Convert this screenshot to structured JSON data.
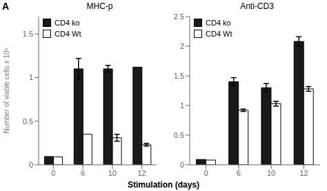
{
  "chart_data": [
    {
      "type": "bar",
      "title": "MHC-p",
      "ylabel": "Number of viable cells x 10⁶",
      "categories": [
        "0",
        "6",
        "10",
        "12"
      ],
      "series": [
        {
          "name": "CD4 ko",
          "color": "#1a1a1a",
          "values": [
            0.095,
            1.1,
            1.1,
            1.12
          ],
          "errors": [
            0.0,
            0.12,
            0.04,
            0.0
          ]
        },
        {
          "name": "CD4 Wt",
          "color": "#ffffff",
          "values": [
            0.09,
            0.35,
            0.31,
            0.23
          ],
          "errors": [
            0.0,
            0.0,
            0.04,
            0.015
          ]
        }
      ],
      "ylim": [
        0,
        1.7
      ],
      "yticks": [
        0,
        0.5,
        1,
        1.5
      ],
      "grid": false,
      "legend": "upper left"
    },
    {
      "type": "bar",
      "title": "Anti-CD3",
      "categories": [
        "0",
        "6",
        "10",
        "12"
      ],
      "series": [
        {
          "name": "CD4 ko",
          "color": "#1a1a1a",
          "values": [
            0.09,
            1.4,
            1.3,
            2.08
          ],
          "errors": [
            0.0,
            0.07,
            0.07,
            0.08
          ]
        },
        {
          "name": "CD4 Wt",
          "color": "#ffffff",
          "values": [
            0.08,
            0.92,
            1.03,
            1.28
          ],
          "errors": [
            0.0,
            0.02,
            0.04,
            0.04
          ]
        }
      ],
      "ylim": [
        0,
        2.5
      ],
      "yticks": [
        0,
        0.5,
        1,
        1.5,
        2,
        2.5
      ],
      "grid": false,
      "legend": "upper left"
    }
  ],
  "xlabel": "Stimulation (days)",
  "annotations": [
    "A"
  ]
}
